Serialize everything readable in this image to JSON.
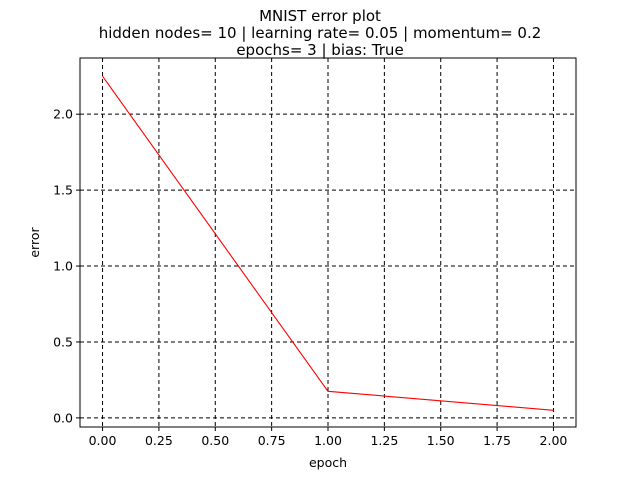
{
  "chart_data": {
    "type": "line",
    "title": [
      "MNIST error plot",
      "hidden nodes= 10 | learning rate= 0.05 | momentum= 0.2",
      "epochs= 3 | bias: True"
    ],
    "xlabel": "epoch",
    "ylabel": "error",
    "xlim": [
      -0.1,
      2.1
    ],
    "ylim": [
      -0.06,
      2.37
    ],
    "xticks": [
      0.0,
      0.25,
      0.5,
      0.75,
      1.0,
      1.25,
      1.5,
      1.75,
      2.0
    ],
    "xtick_labels": [
      "0.00",
      "0.25",
      "0.50",
      "0.75",
      "1.00",
      "1.25",
      "1.50",
      "1.75",
      "2.00"
    ],
    "yticks": [
      0.0,
      0.5,
      1.0,
      1.5,
      2.0
    ],
    "ytick_labels": [
      "0.0",
      "0.5",
      "1.0",
      "1.5",
      "2.0"
    ],
    "grid": true,
    "grid_style": "dashed",
    "grid_color": "#000000",
    "series": [
      {
        "x": [
          0,
          1,
          2
        ],
        "y": [
          2.25,
          0.175,
          0.05
        ],
        "color": "#ff0000"
      }
    ]
  }
}
